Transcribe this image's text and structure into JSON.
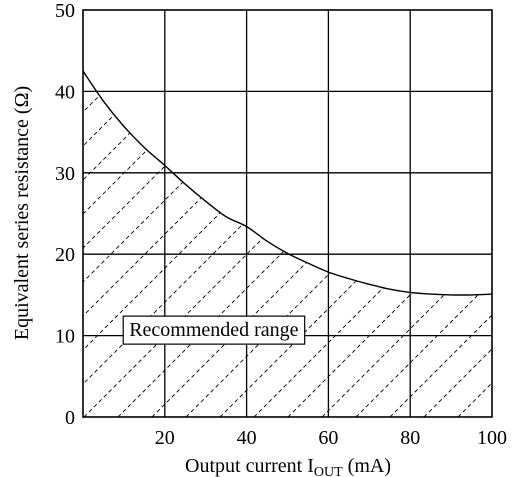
{
  "chart_data": {
    "type": "line",
    "title": "",
    "xlabel": "Output current",
    "xlabel_symbol": "I",
    "xlabel_subscript": "OUT",
    "xlabel_unit": "(mA)",
    "ylabel": "Equivalent series resistance (Ω)",
    "xlim": [
      0,
      100
    ],
    "ylim": [
      0,
      50
    ],
    "x_ticks": [
      20,
      40,
      60,
      80,
      100
    ],
    "y_ticks": [
      0,
      10,
      20,
      30,
      40,
      50
    ],
    "grid": true,
    "series": [
      {
        "x": [
          0,
          5,
          10,
          15,
          20,
          25,
          30,
          35,
          40,
          45,
          50,
          55,
          60,
          65,
          70,
          75,
          80,
          85,
          90,
          95,
          100
        ],
        "values": [
          42.5,
          38.8,
          35.7,
          33.1,
          30.9,
          28.6,
          26.5,
          24.6,
          23.4,
          21.6,
          20.1,
          18.9,
          17.8,
          17.0,
          16.3,
          15.7,
          15.3,
          15.1,
          15.0,
          15.0,
          15.1
        ]
      }
    ],
    "shaded_region": {
      "label": "Recommended range",
      "below_curve": true,
      "pattern": "diagonal-hatch"
    },
    "annotations": [
      {
        "text": "Recommended range",
        "x": 32,
        "y": 10.5
      }
    ]
  }
}
